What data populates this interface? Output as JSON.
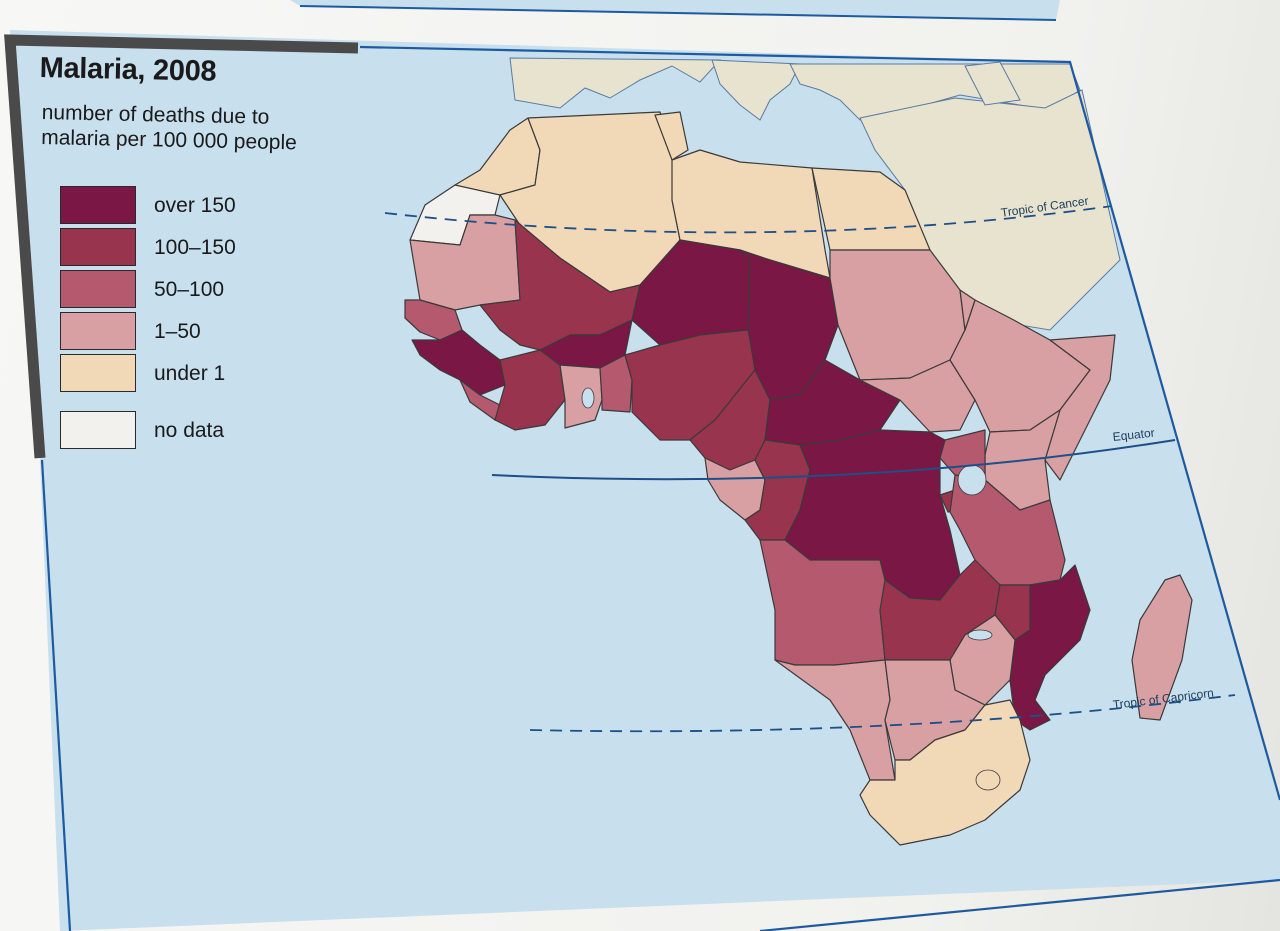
{
  "map": {
    "title": "Malaria, 2008",
    "subtitle": "number of deaths due to malaria per 100 000 people",
    "legend": [
      {
        "label": "over 150",
        "color": "#7a1744"
      },
      {
        "label": "100–150",
        "color": "#99344f"
      },
      {
        "label": "50–100",
        "color": "#b55a6e"
      },
      {
        "label": "1–50",
        "color": "#d9a0a3"
      },
      {
        "label": "under 1",
        "color": "#f1d9b7"
      },
      {
        "label": "no data",
        "color": "#f2f1ee"
      }
    ],
    "lines": {
      "tropic_of_cancer": "Tropic of Cancer",
      "equator": "Equator",
      "tropic_of_capricorn": "Tropic of Capricorn"
    },
    "colors": {
      "ocean": "#c8dfee",
      "non_africa_land": "#e7e3cf",
      "frame": "#1d5aa0",
      "border": "#3a3a3a"
    }
  }
}
